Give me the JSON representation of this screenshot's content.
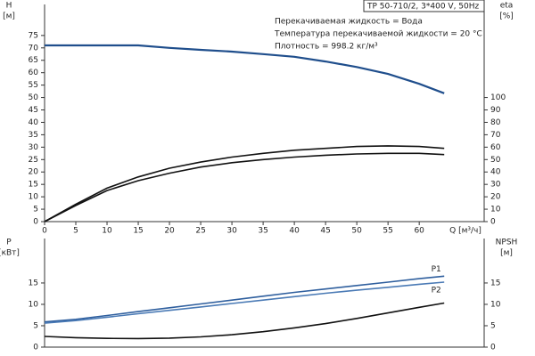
{
  "chart_data": [
    {
      "type": "line",
      "title": "TP 50-710/2, 3*400 V, 50Hz",
      "annotations": [
        "Перекачиваемая жидкость = Вода",
        "Температура перекачиваемой жидкости = 20 °C",
        "Плотность = 998.2 кг/м³"
      ],
      "ylabel": [
        "H",
        "[м]"
      ],
      "y2label": [
        "eta",
        "[%]"
      ],
      "xlabel": "Q [м³/ч]",
      "x": [
        0,
        5,
        10,
        15,
        20,
        25,
        30,
        35,
        40,
        45,
        50,
        55,
        60,
        64
      ],
      "xlim": [
        0,
        70.4
      ],
      "xticks": [
        0,
        5,
        10,
        15,
        20,
        25,
        30,
        35,
        40,
        45,
        50,
        55,
        60
      ],
      "ylim": [
        0,
        87.5
      ],
      "yticks": [
        0,
        5,
        10,
        15,
        20,
        25,
        30,
        35,
        40,
        45,
        50,
        55,
        60,
        65,
        70,
        75
      ],
      "y2lim": [
        0,
        175
      ],
      "y2ticks": [
        0,
        10,
        20,
        30,
        40,
        50,
        60,
        70,
        80,
        90,
        100
      ],
      "series": [
        {
          "color": "#1f4e8c",
          "values": [
            71,
            71,
            71,
            71,
            70,
            69.2,
            68.5,
            67.5,
            66.4,
            64.5,
            62.3,
            59.5,
            55.5,
            51.7
          ]
        },
        {
          "color": "#111111",
          "axis": "y2",
          "values": [
            0,
            14,
            27,
            36,
            43,
            48,
            52,
            55,
            57.5,
            59,
            60.5,
            61,
            60.5,
            59
          ]
        },
        {
          "color": "#111111",
          "axis": "y2",
          "values": [
            0,
            13,
            25,
            33,
            39,
            44,
            47.5,
            50,
            52,
            53.5,
            54.5,
            55,
            55,
            54
          ]
        }
      ]
    },
    {
      "type": "line",
      "ylabel": [
        "P",
        "[кВт]"
      ],
      "y2label": [
        "NPSH",
        "[м]"
      ],
      "x": [
        0,
        5,
        10,
        15,
        20,
        25,
        30,
        35,
        40,
        45,
        50,
        55,
        60,
        64
      ],
      "xlim": [
        0,
        70.4
      ],
      "ylim": [
        0,
        25.4
      ],
      "yticks": [
        0,
        5,
        10,
        15
      ],
      "y2lim": [
        0,
        25.4
      ],
      "y2ticks": [
        0,
        5,
        10,
        15
      ],
      "series": [
        {
          "name": "P1",
          "color": "#2f5f9e",
          "values": [
            5.9,
            6.5,
            7.4,
            8.3,
            9.2,
            10.1,
            11,
            11.9,
            12.8,
            13.6,
            14.4,
            15.2,
            16,
            16.6
          ]
        },
        {
          "name": "P2",
          "color": "#4a7ab5",
          "values": [
            5.6,
            6.2,
            7,
            7.8,
            8.6,
            9.4,
            10.2,
            11,
            11.8,
            12.6,
            13.3,
            14,
            14.7,
            15.2
          ]
        },
        {
          "color": "#111111",
          "axis": "y2",
          "values": [
            2.5,
            2.2,
            2.05,
            2,
            2.1,
            2.4,
            2.9,
            3.6,
            4.5,
            5.5,
            6.7,
            8,
            9.3,
            10.3
          ]
        }
      ]
    }
  ]
}
